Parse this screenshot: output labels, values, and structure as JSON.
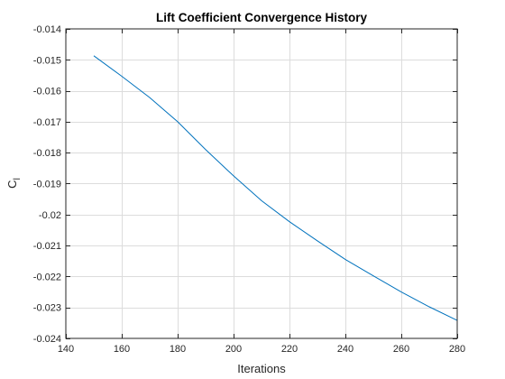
{
  "chart_data": {
    "type": "line",
    "title": "Lift Coefficient Convergence History",
    "xlabel": "Iterations",
    "ylabel_main": "C",
    "ylabel_sub": "l",
    "xlim": [
      140,
      280
    ],
    "ylim": [
      -0.024,
      -0.014
    ],
    "xticks": [
      140,
      160,
      180,
      200,
      220,
      240,
      260,
      280
    ],
    "xtick_labels": [
      "140",
      "160",
      "180",
      "200",
      "220",
      "240",
      "260",
      "280"
    ],
    "yticks": [
      -0.024,
      -0.023,
      -0.022,
      -0.021,
      -0.02,
      -0.019,
      -0.018,
      -0.017,
      -0.016,
      -0.015,
      -0.014
    ],
    "ytick_labels": [
      "-0.024",
      "-0.023",
      "-0.022",
      "-0.021",
      "-0.02",
      "-0.019",
      "-0.018",
      "-0.017",
      "-0.016",
      "-0.015",
      "-0.014"
    ],
    "grid": true,
    "box": true,
    "series": [
      {
        "color": "#0072BD",
        "x": [
          150,
          160,
          170,
          180,
          190,
          200,
          210,
          220,
          230,
          240,
          250,
          260,
          270,
          280
        ],
        "y": [
          -0.01487,
          -0.01553,
          -0.01622,
          -0.017,
          -0.0179,
          -0.01875,
          -0.01955,
          -0.02023,
          -0.02085,
          -0.02145,
          -0.02198,
          -0.0225,
          -0.02298,
          -0.02342
        ]
      }
    ]
  }
}
